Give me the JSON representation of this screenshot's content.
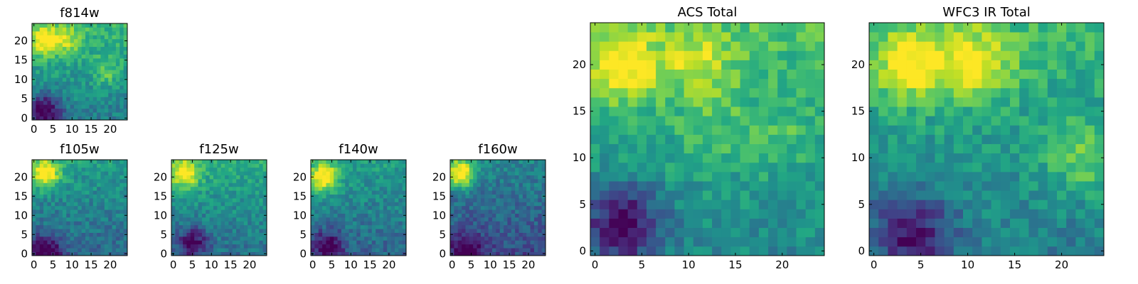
{
  "figure": {
    "description_free": true
  },
  "chart_data": [
    {
      "type": "heatmap",
      "title": "f814w",
      "grid_size": 25,
      "xlim": [
        0,
        24
      ],
      "ylim": [
        0,
        24
      ],
      "x_ticks": [
        0,
        5,
        10,
        15,
        20
      ],
      "y_ticks": [
        0,
        5,
        10,
        15,
        20
      ],
      "x_tick_labels": [
        "0",
        "5",
        "10",
        "15",
        "20"
      ],
      "y_tick_labels": [
        "0",
        "5",
        "10",
        "15",
        "20"
      ],
      "colormap": "viridis",
      "bright_spots": [
        {
          "x": 3,
          "y": 20,
          "level": 1.0
        },
        {
          "x": 9,
          "y": 20,
          "level": 0.8
        },
        {
          "x": 19,
          "y": 12,
          "level": 0.75
        }
      ],
      "dark_region": {
        "x": 3,
        "y": 2,
        "level": 0.05
      },
      "baseline": 0.55
    },
    {
      "type": "heatmap",
      "title": "f105w",
      "grid_size": 25,
      "xlim": [
        0,
        24
      ],
      "ylim": [
        0,
        24
      ],
      "x_ticks": [
        0,
        5,
        10,
        15,
        20
      ],
      "y_ticks": [
        0,
        5,
        10,
        15,
        20
      ],
      "x_tick_labels": [
        "0",
        "5",
        "10",
        "15",
        "20"
      ],
      "y_tick_labels": [
        "0",
        "5",
        "10",
        "15",
        "20"
      ],
      "colormap": "viridis",
      "bright_spots": [
        {
          "x": 3,
          "y": 21,
          "level": 1.0
        }
      ],
      "dark_region": {
        "x": 3,
        "y": 1,
        "level": 0.05
      },
      "baseline": 0.45
    },
    {
      "type": "heatmap",
      "title": "f125w",
      "grid_size": 25,
      "xlim": [
        0,
        24
      ],
      "ylim": [
        0,
        24
      ],
      "x_ticks": [
        0,
        5,
        10,
        15,
        20
      ],
      "y_ticks": [
        0,
        5,
        10,
        15,
        20
      ],
      "x_tick_labels": [
        "0",
        "5",
        "10",
        "15",
        "20"
      ],
      "y_tick_labels": [
        "0",
        "5",
        "10",
        "15",
        "20"
      ],
      "colormap": "viridis",
      "bright_spots": [
        {
          "x": 3,
          "y": 21,
          "level": 1.0
        }
      ],
      "dark_region": {
        "x": 5,
        "y": 3,
        "level": 0.1
      },
      "baseline": 0.5
    },
    {
      "type": "heatmap",
      "title": "f140w",
      "grid_size": 25,
      "xlim": [
        0,
        24
      ],
      "ylim": [
        0,
        24
      ],
      "x_ticks": [
        0,
        5,
        10,
        15,
        20
      ],
      "y_ticks": [
        0,
        5,
        10,
        15,
        20
      ],
      "x_tick_labels": [
        "0",
        "5",
        "10",
        "15",
        "20"
      ],
      "y_tick_labels": [
        "0",
        "5",
        "10",
        "15",
        "20"
      ],
      "colormap": "viridis",
      "bright_spots": [
        {
          "x": 3,
          "y": 20,
          "level": 1.0
        }
      ],
      "dark_region": {
        "x": 4,
        "y": 2,
        "level": 0.05
      },
      "baseline": 0.45
    },
    {
      "type": "heatmap",
      "title": "f160w",
      "grid_size": 25,
      "xlim": [
        0,
        24
      ],
      "ylim": [
        0,
        24
      ],
      "x_ticks": [
        0,
        5,
        10,
        15,
        20
      ],
      "y_ticks": [
        0,
        5,
        10,
        15,
        20
      ],
      "x_tick_labels": [
        "0",
        "5",
        "10",
        "15",
        "20"
      ],
      "y_tick_labels": [
        "0",
        "5",
        "10",
        "15",
        "20"
      ],
      "colormap": "viridis",
      "bright_spots": [
        {
          "x": 2,
          "y": 21,
          "level": 1.0
        }
      ],
      "dark_region": {
        "x": 4,
        "y": 1,
        "level": 0.03
      },
      "baseline": 0.35
    },
    {
      "type": "heatmap",
      "title": "ACS Total",
      "grid_size": 25,
      "xlim": [
        0,
        24
      ],
      "ylim": [
        0,
        24
      ],
      "x_ticks": [
        0,
        5,
        10,
        15,
        20
      ],
      "y_ticks": [
        0,
        5,
        10,
        15,
        20
      ],
      "x_tick_labels": [
        "0",
        "5",
        "10",
        "15",
        "20"
      ],
      "y_tick_labels": [
        "0",
        "5",
        "10",
        "15",
        "20"
      ],
      "colormap": "viridis",
      "bright_spots": [
        {
          "x": 3,
          "y": 20,
          "level": 1.0
        },
        {
          "x": 11,
          "y": 20,
          "level": 0.85
        },
        {
          "x": 13,
          "y": 13,
          "level": 0.7
        },
        {
          "x": 20,
          "y": 12,
          "level": 0.7
        }
      ],
      "dark_region": {
        "x": 3,
        "y": 3,
        "level": 0.1
      },
      "baseline": 0.6
    },
    {
      "type": "heatmap",
      "title": "WFC3 IR Total",
      "grid_size": 25,
      "xlim": [
        0,
        24
      ],
      "ylim": [
        0,
        24
      ],
      "x_ticks": [
        0,
        5,
        10,
        15,
        20
      ],
      "y_ticks": [
        0,
        5,
        10,
        15,
        20
      ],
      "x_tick_labels": [
        "0",
        "5",
        "10",
        "15",
        "20"
      ],
      "y_tick_labels": [
        "0",
        "5",
        "10",
        "15",
        "20"
      ],
      "colormap": "viridis",
      "bright_spots": [
        {
          "x": 4,
          "y": 20,
          "level": 1.0
        },
        {
          "x": 11,
          "y": 20,
          "level": 0.95
        },
        {
          "x": 22,
          "y": 10,
          "level": 0.8
        }
      ],
      "dark_region": {
        "x": 4,
        "y": 2,
        "level": 0.15
      },
      "baseline": 0.55
    }
  ]
}
